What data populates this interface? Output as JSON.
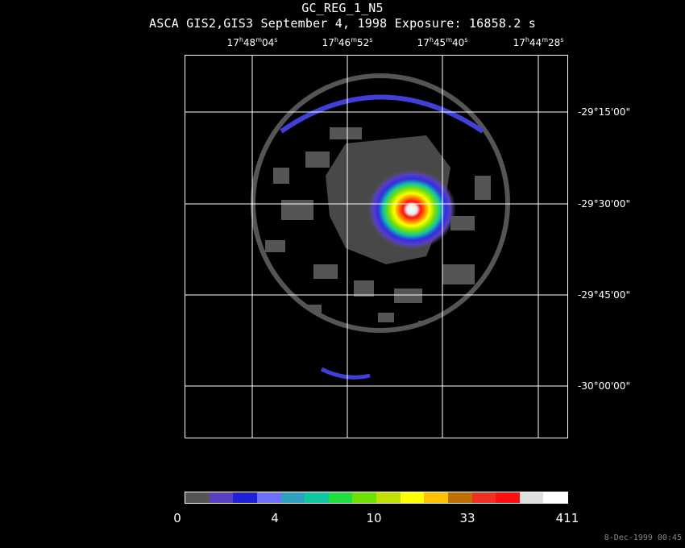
{
  "title": "GC_REG_1_N5",
  "subtitle": "ASCA GIS2,GIS3 September 4, 1998 Exposure: 16858.2 s",
  "ra_labels": [
    {
      "h": "17",
      "m": "48",
      "s": "04"
    },
    {
      "h": "17",
      "m": "46",
      "s": "52"
    },
    {
      "h": "17",
      "m": "45",
      "s": "40"
    },
    {
      "h": "17",
      "m": "44",
      "s": "28"
    }
  ],
  "ra_units": {
    "h": "h",
    "m": "m",
    "s": "s"
  },
  "dec_labels": [
    "-29°15'00\"",
    "-29°30'00\"",
    "-29°45'00\"",
    "-30°00'00\""
  ],
  "colorbar": {
    "colors": [
      "#555555",
      "#5a3fc0",
      "#2020d8",
      "#7070ff",
      "#30a0c0",
      "#10c8a0",
      "#20e040",
      "#70e000",
      "#c0e000",
      "#ffff00",
      "#ffc000",
      "#c07000",
      "#f03020",
      "#ff1010",
      "#e0e0e0",
      "#ffffff"
    ],
    "labels": [
      "0",
      "4",
      "10",
      "33",
      "411"
    ]
  },
  "timestamp": "8-Dec-1999 00:45"
}
